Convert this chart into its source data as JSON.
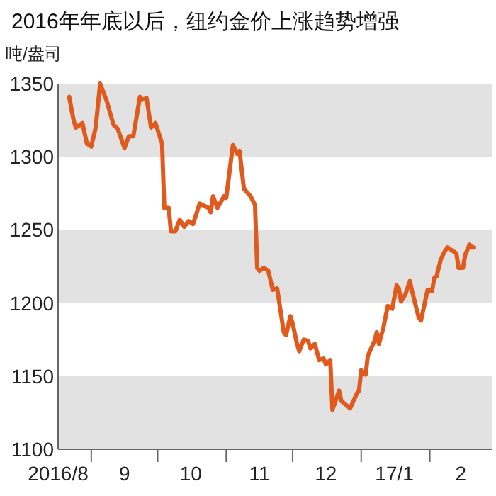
{
  "chart_data": {
    "type": "line",
    "title": "2016年年底以后，纽约金价上涨趋势增强",
    "ylabel": "吨/盎司",
    "x": [
      "2016-08-22",
      "2016-08-24",
      "2016-08-25",
      "2016-08-28",
      "2016-08-30",
      "2016-09-01",
      "2016-09-03",
      "2016-09-05",
      "2016-09-08",
      "2016-09-11",
      "2016-09-13",
      "2016-09-16",
      "2016-09-18",
      "2016-09-20",
      "2016-09-23",
      "2016-09-24",
      "2016-09-26",
      "2016-09-28",
      "2016-09-30",
      "2016-10-03",
      "2016-10-04",
      "2016-10-06",
      "2016-10-07",
      "2016-10-09",
      "2016-10-11",
      "2016-10-13",
      "2016-10-15",
      "2016-10-17",
      "2016-10-20",
      "2016-10-24",
      "2016-10-25",
      "2016-10-26",
      "2016-10-28",
      "2016-10-31",
      "2016-11-01",
      "2016-11-04",
      "2016-11-06",
      "2016-11-07",
      "2016-11-09",
      "2016-11-12",
      "2016-11-14",
      "2016-11-15",
      "2016-11-16",
      "2016-11-18",
      "2016-11-20",
      "2016-11-22",
      "2016-11-24",
      "2016-11-27",
      "2016-11-28",
      "2016-11-30",
      "2016-12-01",
      "2016-12-03",
      "2016-12-04",
      "2016-12-06",
      "2016-12-08",
      "2016-12-09",
      "2016-12-11",
      "2016-12-13",
      "2016-12-15",
      "2016-12-16",
      "2016-12-18",
      "2016-12-19",
      "2016-12-22",
      "2016-12-23",
      "2016-12-27",
      "2016-12-30",
      "2016-12-31",
      "2017-01-01",
      "2017-01-03",
      "2017-01-04",
      "2017-01-07",
      "2017-01-08",
      "2017-01-09",
      "2017-01-11",
      "2017-01-13",
      "2017-01-15",
      "2017-01-17",
      "2017-01-18",
      "2017-01-19",
      "2017-01-21",
      "2017-01-23",
      "2017-01-24",
      "2017-01-27",
      "2017-01-28",
      "2017-01-31",
      "2017-02-02",
      "2017-02-03",
      "2017-02-04",
      "2017-02-06",
      "2017-02-08",
      "2017-02-09",
      "2017-02-11",
      "2017-02-13",
      "2017-02-14",
      "2017-02-16",
      "2017-02-17",
      "2017-02-19",
      "2017-02-20",
      "2017-02-21"
    ],
    "series": [
      {
        "color": "#e05a1e",
        "values": [
          1341,
          1325,
          1320,
          1323,
          1309,
          1307,
          1320,
          1350,
          1338,
          1322,
          1319,
          1306,
          1314,
          1314,
          1341,
          1339,
          1340,
          1320,
          1323,
          1309,
          1265,
          1265,
          1249,
          1249,
          1257,
          1252,
          1256,
          1254,
          1268,
          1265,
          1262,
          1273,
          1265,
          1273,
          1272,
          1308,
          1302,
          1304,
          1278,
          1273,
          1267,
          1224,
          1222,
          1224,
          1222,
          1209,
          1210,
          1180,
          1178,
          1191,
          1186,
          1172,
          1167,
          1175,
          1174,
          1169,
          1172,
          1161,
          1162,
          1158,
          1161,
          1127,
          1140,
          1133,
          1128,
          1138,
          1140,
          1154,
          1151,
          1164,
          1174,
          1180,
          1172,
          1183,
          1198,
          1196,
          1212,
          1210,
          1201,
          1206,
          1215,
          1208,
          1190,
          1188,
          1209,
          1208,
          1217,
          1218,
          1230,
          1236,
          1238,
          1236,
          1234,
          1224,
          1224,
          1233,
          1240,
          1238,
          1238
        ]
      }
    ],
    "xlim": [
      "2016-08-17",
      "2017-03-01"
    ],
    "xticks": [
      {
        "value": "2016-08-17",
        "label": "2016/8"
      },
      {
        "value": "2016-09-01",
        "label": null
      },
      {
        "value": "2016-09-16",
        "label": "9"
      },
      {
        "value": "2016-10-01",
        "label": null
      },
      {
        "value": "2016-10-16",
        "label": "10"
      },
      {
        "value": "2016-11-01",
        "label": null
      },
      {
        "value": "2016-11-16",
        "label": "11"
      },
      {
        "value": "2016-12-01",
        "label": null
      },
      {
        "value": "2016-12-16",
        "label": "12"
      },
      {
        "value": "2017-01-01",
        "label": null
      },
      {
        "value": "2017-01-16",
        "label": "17/1"
      },
      {
        "value": "2017-02-01",
        "label": null
      },
      {
        "value": "2017-02-15",
        "label": "2"
      }
    ],
    "ylim": [
      1100,
      1350
    ],
    "yticks": [
      1100,
      1150,
      1200,
      1250,
      1300,
      1350
    ],
    "bands": [
      {
        "axis": "y",
        "from": 1100,
        "to": 1150,
        "color": "#e2e2e2"
      },
      {
        "axis": "y",
        "from": 1200,
        "to": 1250,
        "color": "#e2e2e2"
      },
      {
        "axis": "y",
        "from": 1300,
        "to": 1350,
        "color": "#e2e2e2"
      }
    ],
    "grid": false,
    "marker": "none",
    "line_style": "solid"
  }
}
